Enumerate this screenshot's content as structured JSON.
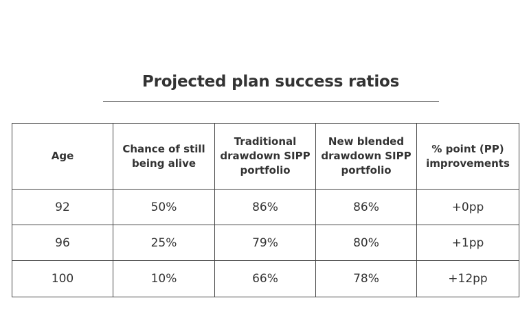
{
  "title": "Projected plan success ratios",
  "table": {
    "headers": [
      "Age",
      "Chance of still being alive",
      "Traditional drawdown SIPP portfolio",
      "New blended drawdown SIPP portfolio",
      "% point (PP) improvements"
    ],
    "rows": [
      [
        "92",
        "50%",
        "86%",
        "86%",
        "+0pp"
      ],
      [
        "96",
        "25%",
        "79%",
        "80%",
        "+1pp"
      ],
      [
        "100",
        "10%",
        "66%",
        "78%",
        "+12pp"
      ]
    ]
  },
  "chart_data": {
    "type": "table",
    "title": "Projected plan success ratios",
    "columns": [
      "Age",
      "Chance of still being alive",
      "Traditional drawdown SIPP portfolio",
      "New blended drawdown SIPP portfolio",
      "% point (PP) improvements"
    ],
    "rows": [
      [
        92,
        "50%",
        "86%",
        "86%",
        "+0pp"
      ],
      [
        96,
        "25%",
        "79%",
        "80%",
        "+1pp"
      ],
      [
        100,
        "10%",
        "66%",
        "78%",
        "+12pp"
      ]
    ]
  }
}
